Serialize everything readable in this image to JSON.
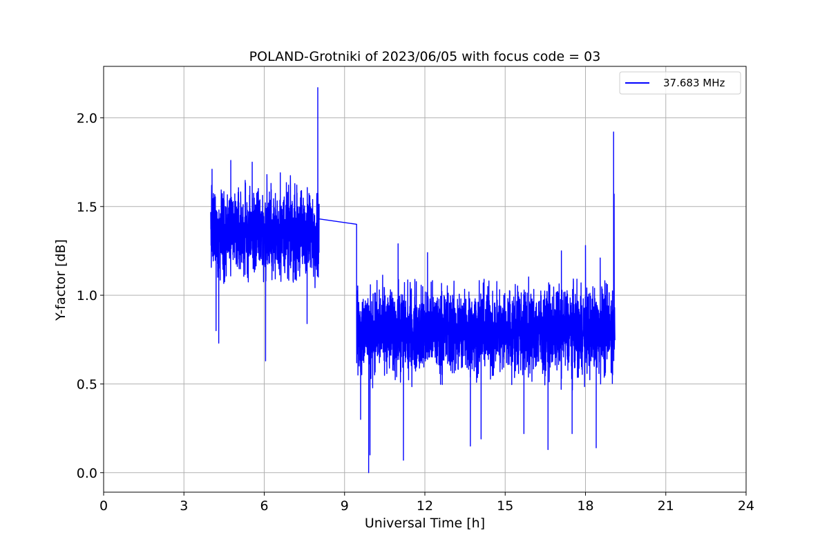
{
  "chart_data": {
    "type": "line",
    "title": "POLAND-Grotniki of 2023/06/05 with focus code = 03",
    "xlabel": "Universal Time [h]",
    "ylabel": "Y-factor [dB]",
    "xlim": [
      0,
      24
    ],
    "ylim": [
      -0.11,
      2.29
    ],
    "xticks": [
      0,
      3,
      6,
      9,
      12,
      15,
      18,
      21,
      24
    ],
    "xtick_labels": [
      "0",
      "3",
      "6",
      "9",
      "12",
      "15",
      "18",
      "21",
      "24"
    ],
    "yticks": [
      0.0,
      0.5,
      1.0,
      1.5,
      2.0
    ],
    "ytick_labels": [
      "0.0",
      "0.5",
      "1.0",
      "1.5",
      "2.0"
    ],
    "grid": true,
    "legend_position": "top-right",
    "colors": {
      "series": "#0000ff",
      "grid": "#b0b0b0",
      "axes": "#000000"
    },
    "series": [
      {
        "name": "37.683 MHz",
        "segments": [
          {
            "x_start": 4.0,
            "x_end": 8.05,
            "center": 1.35,
            "amplitude": 0.22,
            "spikes": [
              [
                4.05,
                1.71
              ],
              [
                4.2,
                0.8
              ],
              [
                4.3,
                0.73
              ],
              [
                4.75,
                1.76
              ],
              [
                5.55,
                1.75
              ],
              [
                6.05,
                0.63
              ],
              [
                6.1,
                1.68
              ],
              [
                6.6,
                1.69
              ],
              [
                7.6,
                0.84
              ],
              [
                8.0,
                2.17
              ],
              [
                8.02,
                1.38
              ]
            ]
          },
          {
            "x_start": 8.05,
            "x_end": 9.45,
            "connector": [
              1.43,
              1.4
            ]
          },
          {
            "x_start": 9.45,
            "x_end": 19.1,
            "center": 0.8,
            "amplitude": 0.22,
            "spikes": [
              [
                9.5,
                0.55
              ],
              [
                9.6,
                0.3
              ],
              [
                9.9,
                0.0
              ],
              [
                9.95,
                0.1
              ],
              [
                11.0,
                1.29
              ],
              [
                11.2,
                0.07
              ],
              [
                12.1,
                1.24
              ],
              [
                13.7,
                0.15
              ],
              [
                14.1,
                0.19
              ],
              [
                15.7,
                0.22
              ],
              [
                16.6,
                0.13
              ],
              [
                17.1,
                1.25
              ],
              [
                17.5,
                0.22
              ],
              [
                18.0,
                1.28
              ],
              [
                18.4,
                0.14
              ],
              [
                18.55,
                1.21
              ],
              [
                19.05,
                1.92
              ],
              [
                19.07,
                1.57
              ]
            ]
          }
        ]
      }
    ]
  }
}
